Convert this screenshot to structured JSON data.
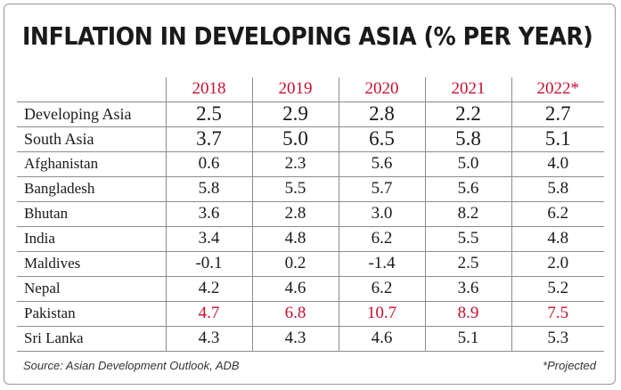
{
  "chart_data": {
    "type": "table",
    "title": "INFLATION IN DEVELOPING ASIA (% PER YEAR)",
    "columns": [
      "2018",
      "2019",
      "2020",
      "2021",
      "2022*"
    ],
    "rows": [
      {
        "label": "Developing Asia",
        "values": [
          "2.5",
          "2.9",
          "2.8",
          "2.2",
          "2.7"
        ]
      },
      {
        "label": "South Asia",
        "values": [
          "3.7",
          "5.0",
          "6.5",
          "5.8",
          "5.1"
        ]
      },
      {
        "label": "Afghanistan",
        "values": [
          "0.6",
          "2.3",
          "5.6",
          "5.0",
          "4.0"
        ]
      },
      {
        "label": "Bangladesh",
        "values": [
          "5.8",
          "5.5",
          "5.7",
          "5.6",
          "5.8"
        ]
      },
      {
        "label": "Bhutan",
        "values": [
          "3.6",
          "2.8",
          "3.0",
          "8.2",
          "6.2"
        ]
      },
      {
        "label": "India",
        "values": [
          "3.4",
          "4.8",
          "6.2",
          "5.5",
          "4.8"
        ]
      },
      {
        "label": "Maldives",
        "values": [
          "-0.1",
          "0.2",
          "-1.4",
          "2.5",
          "2.0"
        ]
      },
      {
        "label": "Nepal",
        "values": [
          "4.2",
          "4.6",
          "6.2",
          "3.6",
          "5.2"
        ]
      },
      {
        "label": "Pakistan",
        "values": [
          "4.7",
          "6.8",
          "10.7",
          "8.9",
          "7.5"
        ]
      },
      {
        "label": "Sri Lanka",
        "values": [
          "4.3",
          "4.3",
          "4.6",
          "5.1",
          "5.3"
        ]
      }
    ],
    "highlighted_row": "Pakistan",
    "emphasized_rows": [
      "Developing Asia",
      "South Asia"
    ],
    "source": "Source: Asian Development Outlook, ADB",
    "note": "*Projected"
  },
  "colors": {
    "accent": "#c8102e",
    "text": "#1a1a1a",
    "rule": "#8c8c8c"
  }
}
